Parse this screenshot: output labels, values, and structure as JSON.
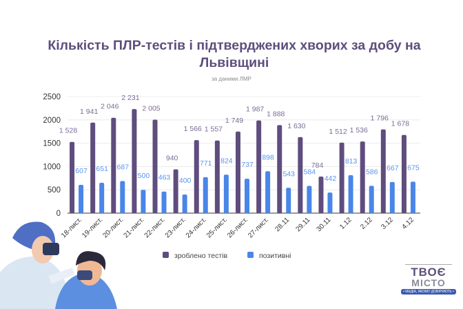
{
  "chart_data": {
    "type": "bar",
    "title": "Кількість ПЛР-тестів і підтверджених хворих за добу на Львівщині",
    "subtitle": "за даними ЛМР",
    "xlabel": "",
    "ylabel": "",
    "ylim": [
      0,
      2500
    ],
    "yticks": [
      "0",
      "500",
      "1000",
      "1500",
      "2000",
      "2500"
    ],
    "grid": true,
    "legend_position": "bottom",
    "categories": [
      "18-лист.",
      "19-лист.",
      "20-лист.",
      "21-лист.",
      "22-лист.",
      "23-лист.",
      "24-лист.",
      "25-лист.",
      "26-лист.",
      "27-лист.",
      "28.11",
      "29.11",
      "30.11",
      "1.12",
      "2.12",
      "3.12",
      "4.12"
    ],
    "series": [
      {
        "name": "зроблено тестів",
        "color": "#5f4d7e",
        "values": [
          1528,
          1941,
          2046,
          2231,
          2005,
          940,
          1566,
          1557,
          1749,
          1987,
          1888,
          1630,
          784,
          1512,
          1536,
          1796,
          1678
        ],
        "labels": [
          "1 528",
          "1 941",
          "2 046",
          "2 231",
          "2 005",
          "940",
          "1 566",
          "1 557",
          "1 749",
          "1 987",
          "1 888",
          "1 630",
          "784",
          "1 512",
          "1 536",
          "1 796",
          "1 678"
        ]
      },
      {
        "name": "позитивні",
        "color": "#4a86e8",
        "values": [
          607,
          651,
          687,
          500,
          463,
          400,
          771,
          824,
          737,
          898,
          543,
          584,
          442,
          813,
          586,
          667,
          675
        ],
        "labels": [
          "607",
          "651",
          "687",
          "500",
          "463",
          "400",
          "771",
          "824",
          "737",
          "898",
          "543",
          "584",
          "442",
          "813",
          "586",
          "667",
          "675"
        ]
      }
    ]
  },
  "logo": {
    "line1": "ТВОЄ",
    "line2": "МІСТО",
    "tagline": "• МЕДІА, ЯКОМУ ДОВІРЯЮТЬ •"
  }
}
